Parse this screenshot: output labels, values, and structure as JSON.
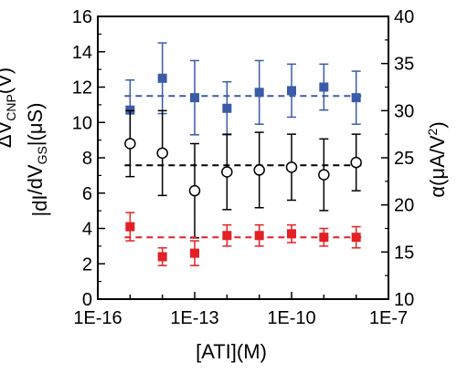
{
  "chart_data": {
    "type": "scatter",
    "x_scale": "log",
    "grid": false,
    "xlabel": "[ATI](M)",
    "ylabel_left": {
      "main": "|dI",
      "sub1": "DS",
      "mid": "/dV",
      "sub2": "GS",
      "end": "|(μS)"
    },
    "ylabel_left_outer": {
      "main": "ΔV",
      "sub": "CNP",
      "end": "(V)"
    },
    "ylabel_right": {
      "main": "α(μA/V",
      "sup": "2",
      "end": ")"
    },
    "xlim_exp": [
      -16,
      -7
    ],
    "x_ticks": [
      {
        "exp": -16,
        "label": "1E-16"
      },
      {
        "exp": -13,
        "label": "1E-13"
      },
      {
        "exp": -10,
        "label": "1E-10"
      },
      {
        "exp": -7,
        "label": "1E-7"
      }
    ],
    "y_left": {
      "lim": [
        0,
        16
      ],
      "ticks": [
        0,
        2,
        4,
        6,
        8,
        10,
        12,
        14,
        16
      ]
    },
    "y_right": {
      "lim": [
        10,
        40
      ],
      "ticks": [
        10,
        15,
        20,
        25,
        30,
        35,
        40
      ]
    },
    "x_points": [
      1e-15,
      1e-14,
      1e-13,
      1e-12,
      1e-11,
      1e-10,
      1e-09,
      1e-08
    ],
    "series": [
      {
        "axis": "left",
        "marker": "square-filled",
        "color": "#3a5ba8",
        "values": [
          10.7,
          12.5,
          11.4,
          10.8,
          11.7,
          11.8,
          12.0,
          11.4
        ],
        "err": [
          1.7,
          2.0,
          2.1,
          1.5,
          1.8,
          1.5,
          1.3,
          1.5
        ],
        "mean": 11.5
      },
      {
        "axis": "right",
        "marker": "circle-open",
        "color": "#000000",
        "values": [
          26.5,
          25.5,
          21.5,
          23.5,
          23.7,
          24.0,
          23.2,
          24.5
        ],
        "err": [
          3.5,
          4.5,
          5.0,
          4.0,
          4.0,
          3.5,
          3.8,
          3.0
        ],
        "mean": 24.2
      },
      {
        "axis": "left",
        "marker": "square-filled",
        "color": "#e32024",
        "values": [
          4.1,
          2.4,
          2.6,
          3.6,
          3.6,
          3.7,
          3.5,
          3.5
        ],
        "err": [
          0.8,
          0.5,
          0.7,
          0.6,
          0.6,
          0.5,
          0.5,
          0.6
        ],
        "mean": 3.5
      }
    ]
  }
}
